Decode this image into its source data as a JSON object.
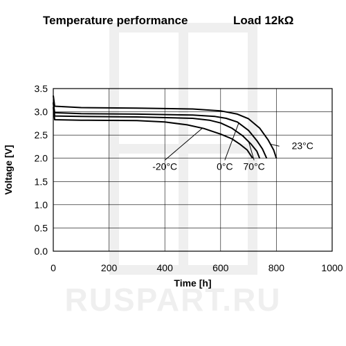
{
  "watermark": {
    "text": "RUSPART.RU",
    "logo": "square-cross-logo"
  },
  "chart_data": {
    "type": "line",
    "title": "Temperature performance",
    "subtitle": "Load 12kΩ",
    "xlabel": "Time [h]",
    "ylabel": "Voltage [V]",
    "xlim": [
      0,
      1000
    ],
    "ylim": [
      0.0,
      3.5
    ],
    "x_ticks": [
      "0",
      "200",
      "400",
      "600",
      "800",
      "1000"
    ],
    "y_ticks": [
      "0.0",
      "0.5",
      "1.0",
      "1.5",
      "2.0",
      "2.5",
      "3.0",
      "3.5"
    ],
    "grid": true,
    "legend": "none",
    "series": [
      {
        "name": "23°C",
        "points": [
          [
            0,
            3.35
          ],
          [
            5,
            3.12
          ],
          [
            100,
            3.09
          ],
          [
            300,
            3.08
          ],
          [
            500,
            3.06
          ],
          [
            600,
            3.02
          ],
          [
            660,
            2.95
          ],
          [
            700,
            2.85
          ],
          [
            740,
            2.65
          ],
          [
            770,
            2.4
          ],
          [
            790,
            2.18
          ],
          [
            800,
            2.0
          ]
        ]
      },
      {
        "name": "0°C",
        "points": [
          [
            0,
            3.2
          ],
          [
            5,
            2.98
          ],
          [
            100,
            2.96
          ],
          [
            300,
            2.95
          ],
          [
            500,
            2.93
          ],
          [
            580,
            2.9
          ],
          [
            620,
            2.86
          ],
          [
            660,
            2.78
          ],
          [
            700,
            2.6
          ],
          [
            730,
            2.38
          ],
          [
            750,
            2.2
          ],
          [
            765,
            2.0
          ]
        ]
      },
      {
        "name": "70°C",
        "points": [
          [
            0,
            3.2
          ],
          [
            5,
            2.91
          ],
          [
            100,
            2.9
          ],
          [
            300,
            2.89
          ],
          [
            500,
            2.86
          ],
          [
            560,
            2.82
          ],
          [
            600,
            2.76
          ],
          [
            640,
            2.65
          ],
          [
            680,
            2.48
          ],
          [
            710,
            2.3
          ],
          [
            730,
            2.15
          ],
          [
            740,
            2.0
          ]
        ]
      },
      {
        "name": "-20°C",
        "points": [
          [
            0,
            3.1
          ],
          [
            5,
            2.83
          ],
          [
            100,
            2.82
          ],
          [
            300,
            2.81
          ],
          [
            400,
            2.78
          ],
          [
            480,
            2.72
          ],
          [
            540,
            2.64
          ],
          [
            600,
            2.52
          ],
          [
            640,
            2.42
          ],
          [
            670,
            2.3
          ],
          [
            695,
            2.18
          ],
          [
            715,
            2.0
          ]
        ]
      }
    ],
    "annotations": [
      {
        "text": "23°C",
        "label_at": [
          855,
          2.2
        ],
        "arrow_to": [
          782,
          2.3
        ]
      },
      {
        "text": "-20°C",
        "label_at": [
          400,
          1.75
        ],
        "arrow_to": [
          535,
          2.65
        ]
      },
      {
        "text": "0°C",
        "label_at": [
          615,
          1.75
        ],
        "arrow_to": [
          665,
          2.76
        ]
      },
      {
        "text": "70°C",
        "label_at": [
          720,
          1.75
        ],
        "arrow_to": [
          700,
          2.37
        ]
      }
    ]
  }
}
